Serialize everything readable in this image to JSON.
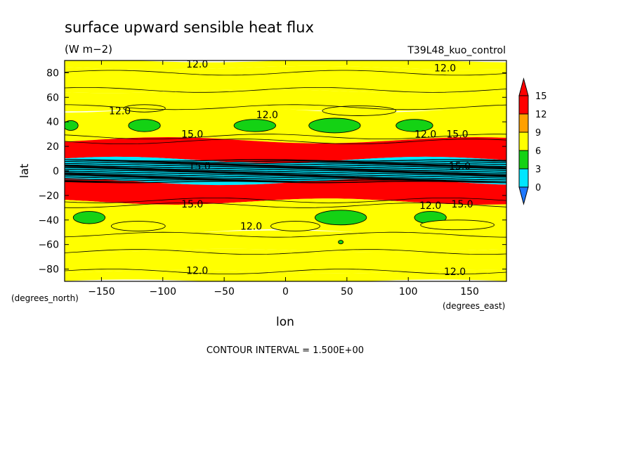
{
  "chart_data": {
    "type": "contour",
    "title": "surface upward sensible heat flux",
    "units": "(W m−2)",
    "experiment": "T39L48_kuo_control",
    "xlabel": "lon",
    "ylabel": "lat",
    "x_units": "(degrees_east)",
    "y_units": "(degrees_north)",
    "xlim": [
      -180,
      180
    ],
    "ylim": [
      -90,
      90
    ],
    "x_ticks": [
      -150,
      -100,
      -50,
      0,
      50,
      100,
      150
    ],
    "x_tick_labels": [
      "−150",
      "−100",
      "−50",
      "0",
      "50",
      "100",
      "150"
    ],
    "y_ticks": [
      80,
      60,
      40,
      20,
      0,
      -20,
      -40,
      -60,
      -80
    ],
    "y_tick_labels": [
      "80",
      "60",
      "40",
      "20",
      "0",
      "−20",
      "−40",
      "−60",
      "−80"
    ],
    "contour_interval_text": "CONTOUR INTERVAL = 1.500E+00",
    "colorbar": {
      "levels": [
        0,
        3,
        6,
        9,
        12,
        15
      ],
      "labels": [
        "0",
        "3",
        "6",
        "9",
        "12",
        "15"
      ],
      "colors": [
        "#1e78ff",
        "#00e6ff",
        "#14d214",
        "#ffff00",
        "#ffa000",
        "#ff0000"
      ]
    },
    "zonal_bands": [
      {
        "lat_from": 90,
        "lat_to": 84,
        "value": 11
      },
      {
        "lat_from": 84,
        "lat_to": 65,
        "value": 10.5
      },
      {
        "lat_from": 65,
        "lat_to": 50,
        "value": 11
      },
      {
        "lat_from": 50,
        "lat_to": 25,
        "value": 10.5
      },
      {
        "lat_from": 25,
        "lat_to": 9,
        "value": 16
      },
      {
        "lat_from": 9,
        "lat_to": -9,
        "value": 4
      },
      {
        "lat_from": -9,
        "lat_to": -25,
        "value": 16
      },
      {
        "lat_from": -25,
        "lat_to": -50,
        "value": 10.5
      },
      {
        "lat_from": -50,
        "lat_to": -65,
        "value": 10
      },
      {
        "lat_from": -65,
        "lat_to": -82,
        "value": 10
      },
      {
        "lat_from": -82,
        "lat_to": -90,
        "value": 11
      }
    ],
    "contour_labels": [
      {
        "text": "12.0",
        "lon": -72,
        "lat": 87
      },
      {
        "text": "12.0",
        "lon": 130,
        "lat": 84
      },
      {
        "text": "12.0",
        "lon": -135,
        "lat": 49
      },
      {
        "text": "12.0",
        "lon": -15,
        "lat": 46
      },
      {
        "text": "12.0",
        "lon": 114,
        "lat": 30
      },
      {
        "text": "15.0",
        "lon": 140,
        "lat": 30
      },
      {
        "text": "15.0",
        "lon": -76,
        "lat": 30
      },
      {
        "text": "15.0",
        "lon": -70,
        "lat": 4
      },
      {
        "text": "15.0",
        "lon": 142,
        "lat": 4
      },
      {
        "text": "15.0",
        "lon": -76,
        "lat": -27
      },
      {
        "text": "15.0",
        "lon": 144,
        "lat": -27
      },
      {
        "text": "12.0",
        "lon": 118,
        "lat": -28
      },
      {
        "text": "12.0",
        "lon": -28,
        "lat": -45
      },
      {
        "text": "12.0",
        "lon": -72,
        "lat": -81
      },
      {
        "text": "12.0",
        "lon": 138,
        "lat": -82
      }
    ]
  }
}
